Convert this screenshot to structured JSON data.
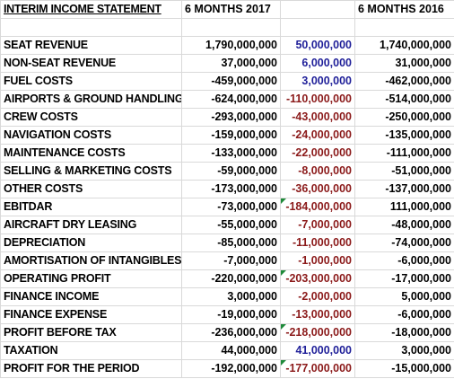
{
  "header": {
    "title": "INTERIM INCOME STATEMENT",
    "col_2017": "6 MONTHS 2017",
    "col_change": "",
    "col_2016": "6 MONTHS 2016"
  },
  "rows": [
    {
      "label": "SEAT REVENUE",
      "v2017": "1,790,000,000",
      "change": "50,000,000",
      "v2016": "1,740,000,000"
    },
    {
      "label": "NON-SEAT REVENUE",
      "v2017": "37,000,000",
      "change": "6,000,000",
      "v2016": "31,000,000"
    },
    {
      "label": "FUEL COSTS",
      "v2017": "-459,000,000",
      "change": "3,000,000",
      "v2016": "-462,000,000"
    },
    {
      "label": "AIRPORTS & GROUND HANDLING",
      "v2017": "-624,000,000",
      "change": "-110,000,000",
      "v2016": "-514,000,000"
    },
    {
      "label": "CREW COSTS",
      "v2017": "-293,000,000",
      "change": "-43,000,000",
      "v2016": "-250,000,000"
    },
    {
      "label": "NAVIGATION COSTS",
      "v2017": "-159,000,000",
      "change": "-24,000,000",
      "v2016": "-135,000,000"
    },
    {
      "label": "MAINTENANCE COSTS",
      "v2017": "-133,000,000",
      "change": "-22,000,000",
      "v2016": "-111,000,000"
    },
    {
      "label": "SELLING & MARKETING COSTS",
      "v2017": "-59,000,000",
      "change": "-8,000,000",
      "v2016": "-51,000,000"
    },
    {
      "label": "OTHER COSTS",
      "v2017": "-173,000,000",
      "change": "-36,000,000",
      "v2016": "-137,000,000"
    },
    {
      "label": "EBITDAR",
      "v2017": "-73,000,000",
      "change": "-184,000,000",
      "v2016": "111,000,000"
    },
    {
      "label": "AIRCRAFT DRY LEASING",
      "v2017": "-55,000,000",
      "change": "-7,000,000",
      "v2016": "-48,000,000"
    },
    {
      "label": "DEPRECIATION",
      "v2017": "-85,000,000",
      "change": "-11,000,000",
      "v2016": "-74,000,000"
    },
    {
      "label": "AMORTISATION OF INTANGIBLES",
      "v2017": "-7,000,000",
      "change": "-1,000,000",
      "v2016": "-6,000,000"
    },
    {
      "label": "OPERATING PROFIT",
      "v2017": "-220,000,000",
      "change": "-203,000,000",
      "v2016": "-17,000,000"
    },
    {
      "label": "FINANCE INCOME",
      "v2017": "3,000,000",
      "change": "-2,000,000",
      "v2016": "5,000,000"
    },
    {
      "label": "FINANCE EXPENSE",
      "v2017": "-19,000,000",
      "change": "-13,000,000",
      "v2016": "-6,000,000"
    },
    {
      "label": "PROFIT BEFORE TAX",
      "v2017": "-236,000,000",
      "change": "-218,000,000",
      "v2016": "-18,000,000"
    },
    {
      "label": "TAXATION",
      "v2017": "44,000,000",
      "change": "41,000,000",
      "v2016": "3,000,000"
    },
    {
      "label": "PROFIT FOR THE PERIOD",
      "v2017": "-192,000,000",
      "change": "-177,000,000",
      "v2016": "-15,000,000"
    }
  ],
  "colors": {
    "positive_change": "#1f1f99",
    "negative_change": "#8b1a1a",
    "comment_marker": "#1e8a3a",
    "gridline": "#d9d9d9"
  }
}
